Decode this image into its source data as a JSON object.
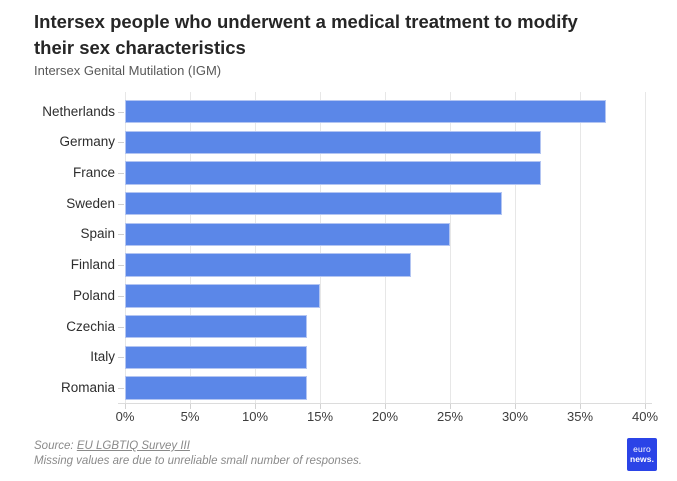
{
  "title_lines": [
    "Intersex people who underwent a medical treatment to modify",
    "their sex characteristics"
  ],
  "subtitle": "Intersex Genital Mutilation (IGM)",
  "chart_data": {
    "type": "bar",
    "orientation": "horizontal",
    "title": "Intersex people who underwent a medical treatment to modify their sex characteristics",
    "subtitle": "Intersex Genital Mutilation (IGM)",
    "categories": [
      "Netherlands",
      "Germany",
      "France",
      "Sweden",
      "Spain",
      "Finland",
      "Poland",
      "Czechia",
      "Italy",
      "Romania"
    ],
    "values": [
      37,
      32,
      32,
      29,
      25,
      22,
      15,
      14,
      14,
      14
    ],
    "unit": "%",
    "xlim": [
      0,
      40
    ],
    "x_tick_values": [
      0,
      5,
      10,
      15,
      20,
      25,
      30,
      35,
      40
    ],
    "x_tick_labels": [
      "0%",
      "5%",
      "10%",
      "15%",
      "20%",
      "25%",
      "30%",
      "35%",
      "40%"
    ],
    "grid": "vertical",
    "legend": "none",
    "bar_color": "#5B87E8"
  },
  "footer": {
    "source_prefix": "Source: ",
    "source_link_text": "EU LGBTIQ Survey III",
    "note": "Missing values are due to unreliable small number of responses."
  },
  "logo": {
    "line1": "euro",
    "line2": "news.",
    "bg_color": "#2B44E7"
  },
  "colors": {
    "bar": "#5B87E8",
    "bar_outline": "#B3C5F2",
    "gridline": "#E7E7E7",
    "axis_line": "#DCDCDC",
    "title_text": "#262626",
    "subtitle_text": "#585858",
    "label_text": "#2D2D2D",
    "source_text": "#8A8A8A",
    "logo_bg": "#2B44E7",
    "background": "#FFFFFF"
  }
}
